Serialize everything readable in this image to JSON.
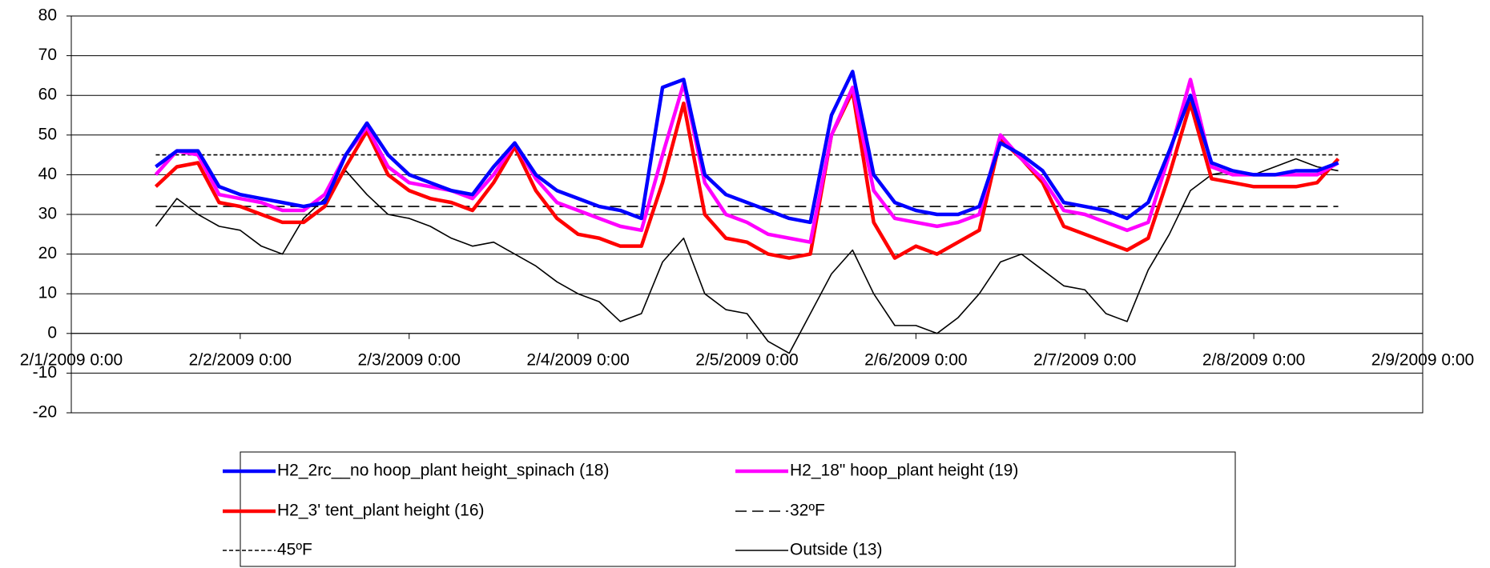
{
  "chart_data": {
    "type": "line",
    "xlim": [
      "2/1/2009 0:00",
      "2/9/2009 0:00"
    ],
    "xticks": [
      "2/1/2009 0:00",
      "2/2/2009 0:00",
      "2/3/2009 0:00",
      "2/4/2009 0:00",
      "2/5/2009 0:00",
      "2/6/2009 0:00",
      "2/7/2009 0:00",
      "2/8/2009 0:00",
      "2/9/2009 0:00"
    ],
    "ylim": [
      -20,
      80
    ],
    "yticks": [
      -20,
      -10,
      0,
      10,
      20,
      30,
      40,
      50,
      60,
      70,
      80
    ],
    "grid": true,
    "legend": "bottom",
    "x": [
      "2/1/2009 12:00",
      "2/1/2009 15:00",
      "2/1/2009 18:00",
      "2/1/2009 21:00",
      "2/2/2009 0:00",
      "2/2/2009 3:00",
      "2/2/2009 6:00",
      "2/2/2009 9:00",
      "2/2/2009 12:00",
      "2/2/2009 15:00",
      "2/2/2009 18:00",
      "2/2/2009 21:00",
      "2/3/2009 0:00",
      "2/3/2009 3:00",
      "2/3/2009 6:00",
      "2/3/2009 9:00",
      "2/3/2009 12:00",
      "2/3/2009 15:00",
      "2/3/2009 18:00",
      "2/3/2009 21:00",
      "2/4/2009 0:00",
      "2/4/2009 3:00",
      "2/4/2009 6:00",
      "2/4/2009 9:00",
      "2/4/2009 12:00",
      "2/4/2009 15:00",
      "2/4/2009 18:00",
      "2/4/2009 21:00",
      "2/5/2009 0:00",
      "2/5/2009 3:00",
      "2/5/2009 6:00",
      "2/5/2009 9:00",
      "2/5/2009 12:00",
      "2/5/2009 15:00",
      "2/5/2009 18:00",
      "2/5/2009 21:00",
      "2/6/2009 0:00",
      "2/6/2009 3:00",
      "2/6/2009 6:00",
      "2/6/2009 9:00",
      "2/6/2009 12:00",
      "2/6/2009 15:00",
      "2/6/2009 18:00",
      "2/6/2009 21:00",
      "2/7/2009 0:00",
      "2/7/2009 3:00",
      "2/7/2009 6:00",
      "2/7/2009 9:00",
      "2/7/2009 12:00",
      "2/7/2009 15:00",
      "2/7/2009 18:00",
      "2/7/2009 21:00",
      "2/8/2009 0:00",
      "2/8/2009 3:00",
      "2/8/2009 6:00",
      "2/8/2009 9:00",
      "2/8/2009 12:00"
    ],
    "series": [
      {
        "name": "H2_2rc__no hoop_plant height_spinach (18)",
        "color": "#0000ff",
        "linestyle": "solid",
        "weight": "bold",
        "values": [
          42,
          46,
          46,
          37,
          35,
          34,
          33,
          32,
          33,
          45,
          53,
          45,
          40,
          38,
          36,
          35,
          42,
          48,
          40,
          36,
          34,
          32,
          31,
          29,
          62,
          64,
          40,
          35,
          33,
          31,
          29,
          28,
          55,
          66,
          40,
          33,
          31,
          30,
          30,
          32,
          48,
          45,
          41,
          33,
          32,
          31,
          29,
          33,
          46,
          60,
          43,
          41,
          40,
          40,
          41,
          41,
          43
        ]
      },
      {
        "name": "H2_18\" hoop_plant height (19)",
        "color": "#ff00ff",
        "linestyle": "solid",
        "weight": "bold",
        "values": [
          40,
          46,
          45,
          35,
          34,
          33,
          31,
          31,
          35,
          45,
          52,
          42,
          38,
          37,
          36,
          34,
          40,
          48,
          39,
          33,
          31,
          29,
          27,
          26,
          45,
          63,
          38,
          30,
          28,
          25,
          24,
          23,
          50,
          62,
          36,
          29,
          28,
          27,
          28,
          30,
          50,
          44,
          39,
          31,
          30,
          28,
          26,
          28,
          45,
          64,
          42,
          40,
          40,
          40,
          40,
          40,
          43
        ]
      },
      {
        "name": "H2_3' tent_plant height (16)",
        "color": "#ff0000",
        "linestyle": "solid",
        "weight": "bold",
        "values": [
          37,
          42,
          43,
          33,
          32,
          30,
          28,
          28,
          32,
          42,
          51,
          40,
          36,
          34,
          33,
          31,
          38,
          47,
          36,
          29,
          25,
          24,
          22,
          22,
          38,
          58,
          30,
          24,
          23,
          20,
          19,
          20,
          50,
          61,
          28,
          19,
          22,
          20,
          23,
          26,
          49,
          44,
          38,
          27,
          25,
          23,
          21,
          24,
          40,
          58,
          39,
          38,
          37,
          37,
          37,
          38,
          44
        ]
      },
      {
        "name": "32ºF",
        "color": "#000000",
        "linestyle": "dashed",
        "weight": "thin",
        "x": [
          "2/1/2009 12:00",
          "2/8/2009 12:00"
        ],
        "values": [
          32,
          32
        ]
      },
      {
        "name": "45ºF",
        "color": "#000000",
        "linestyle": "dotted",
        "weight": "thin",
        "x": [
          "2/1/2009 12:00",
          "2/8/2009 12:00"
        ],
        "values": [
          45,
          45
        ]
      },
      {
        "name": "Outside (13)",
        "color": "#000000",
        "linestyle": "solid",
        "weight": "thin",
        "values": [
          27,
          34,
          30,
          27,
          26,
          22,
          20,
          29,
          34,
          41,
          35,
          30,
          29,
          27,
          24,
          22,
          23,
          20,
          17,
          13,
          10,
          8,
          3,
          5,
          18,
          24,
          10,
          6,
          5,
          -2,
          -5,
          5,
          15,
          21,
          10,
          2,
          2,
          0,
          4,
          10,
          18,
          20,
          16,
          12,
          11,
          5,
          3,
          16,
          25,
          36,
          40,
          41,
          40,
          42,
          44,
          42,
          41
        ]
      }
    ]
  }
}
